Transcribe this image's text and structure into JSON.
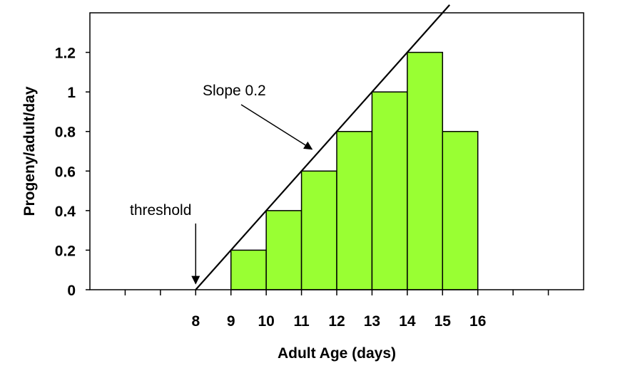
{
  "chart_data": {
    "type": "bar",
    "bins": [
      {
        "start": 9,
        "end": 10,
        "value": 0.2
      },
      {
        "start": 10,
        "end": 11,
        "value": 0.4
      },
      {
        "start": 11,
        "end": 12,
        "value": 0.6
      },
      {
        "start": 12,
        "end": 13,
        "value": 0.8
      },
      {
        "start": 13,
        "end": 14,
        "value": 1.0
      },
      {
        "start": 14,
        "end": 15,
        "value": 1.2
      },
      {
        "start": 15,
        "end": 16,
        "value": 0.8
      }
    ],
    "x_tick_labels": [
      "8",
      "9",
      "10",
      "11",
      "12",
      "13",
      "14",
      "15",
      "16"
    ],
    "y_tick_labels": [
      "0",
      "0.2",
      "0.4",
      "0.6",
      "0.8",
      "1",
      "1.2"
    ],
    "xlabel": "Adult Age (days)",
    "ylabel": "Progeny/adult/day",
    "xlim": [
      5,
      19
    ],
    "ylim": [
      0,
      1.4
    ],
    "bar_color": "#99ff33",
    "slope_line": {
      "from": [
        8,
        0
      ],
      "to": [
        15.2,
        1.44
      ]
    },
    "annotations": [
      {
        "text": "Slope  0.2",
        "arrow_to": [
          11.3,
          0.71
        ]
      },
      {
        "text": "threshold",
        "arrow_to": [
          8,
          0.03
        ]
      }
    ],
    "grid": false
  }
}
